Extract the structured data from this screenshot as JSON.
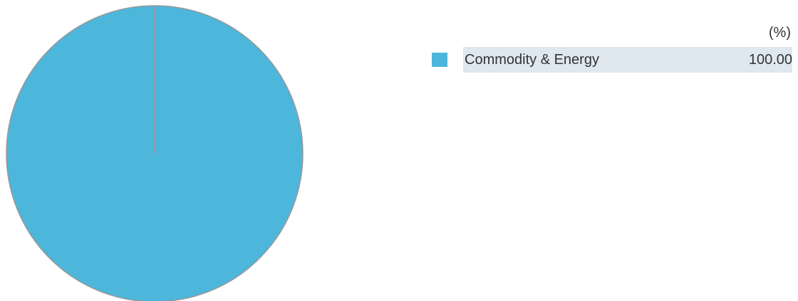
{
  "chart_data": {
    "type": "pie",
    "unit_label": "(%)",
    "slices": [
      {
        "label": "Commodity & Energy",
        "value": 100.0,
        "value_text": "100.00",
        "color": "#4db6db"
      }
    ],
    "slice_edge_color": "#999999",
    "legend_row_background": "#dfe8ee",
    "legend_placement": "right"
  }
}
